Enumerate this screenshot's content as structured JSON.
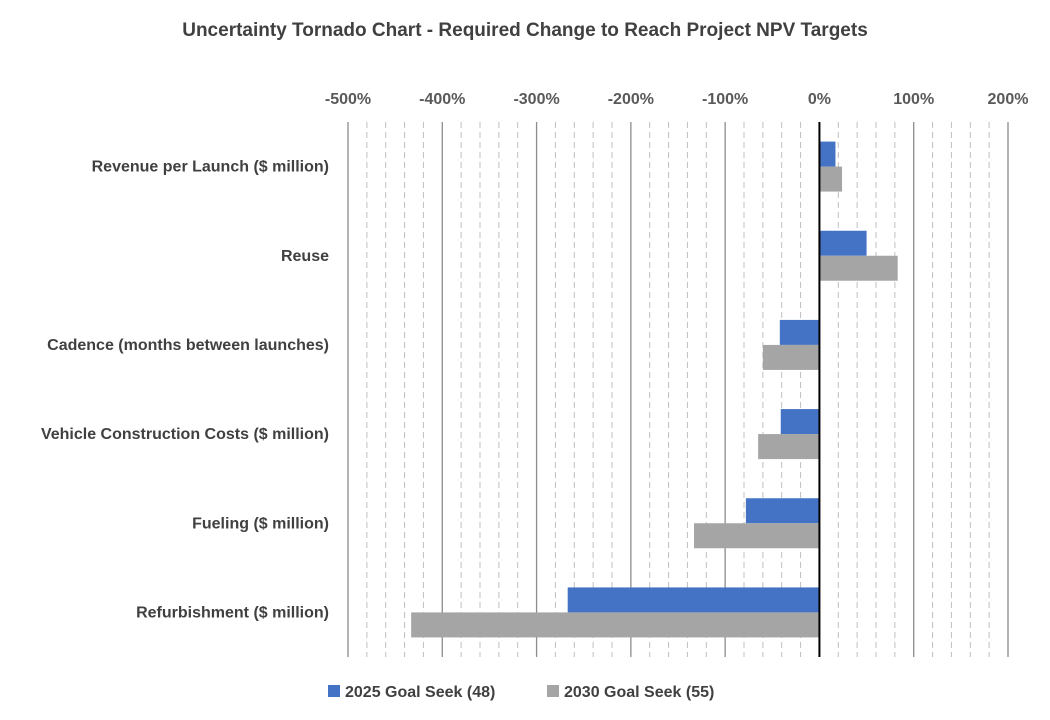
{
  "chart_data": {
    "type": "bar",
    "orientation": "horizontal",
    "title": "Uncertainty Tornado Chart - Required Change to Reach Project NPV Targets",
    "xlabel": "",
    "ylabel": "",
    "xlim": [
      -5,
      2
    ],
    "x_ticks": [
      -5,
      -4,
      -3,
      -2,
      -1,
      0,
      1,
      2
    ],
    "x_tick_labels": [
      "-500%",
      "-400%",
      "-300%",
      "-200%",
      "-100%",
      "0%",
      "100%",
      "200%"
    ],
    "x_axis_position": "top",
    "grid": "major solid, minor dashed",
    "categories": [
      "Revenue per Launch ($ million)",
      "Reuse",
      "Cadence (months between launches)",
      "Vehicle Construction Costs ($ million)",
      "Fueling ($ million)",
      "Refurbishment ($ million)"
    ],
    "series": [
      {
        "name": "2025 Goal Seek (48)",
        "color": "#4472C4",
        "values": [
          0.17,
          0.5,
          -0.42,
          -0.41,
          -0.78,
          -2.67
        ]
      },
      {
        "name": "2030 Goal Seek (55)",
        "color": "#A5A5A5",
        "values": [
          0.24,
          0.83,
          -0.6,
          -0.65,
          -1.33,
          -4.33
        ]
      }
    ],
    "legend_position": "bottom"
  }
}
